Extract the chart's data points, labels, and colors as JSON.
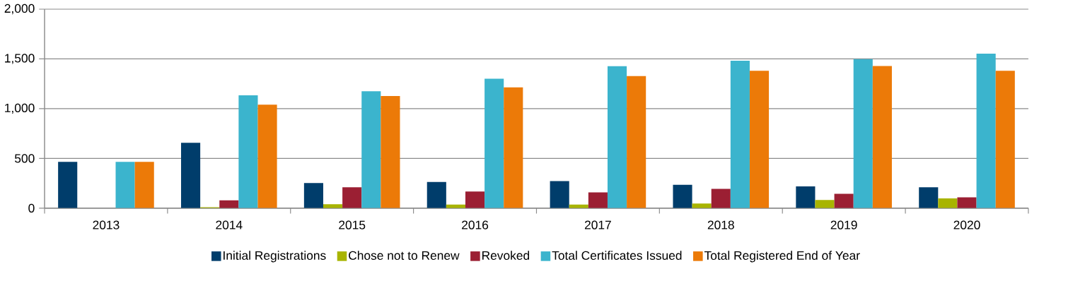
{
  "chart_data": {
    "type": "bar",
    "categories": [
      "2013",
      "2014",
      "2015",
      "2016",
      "2017",
      "2018",
      "2019",
      "2020"
    ],
    "series": [
      {
        "name": "Initial Registrations",
        "color": "#003d6b",
        "values": [
          465,
          657,
          253,
          263,
          272,
          235,
          219,
          210
        ]
      },
      {
        "name": "Chose not to Renew",
        "color": "#a8b400",
        "values": [
          0,
          10,
          39,
          37,
          37,
          46,
          83,
          99
        ]
      },
      {
        "name": "Revoked",
        "color": "#9b1f33",
        "values": [
          0,
          78,
          210,
          168,
          159,
          194,
          145,
          108
        ]
      },
      {
        "name": "Total Certificates Issued",
        "color": "#3bb4cd",
        "values": [
          465,
          1134,
          1175,
          1300,
          1426,
          1482,
          1498,
          1553
        ]
      },
      {
        "name": "Total Registered End of Year",
        "color": "#ec7a08",
        "values": [
          465,
          1041,
          1127,
          1214,
          1327,
          1380,
          1429,
          1380
        ]
      }
    ],
    "ylim": [
      0,
      2000
    ],
    "yticks": [
      0,
      500,
      {
        "value": 1000,
        "label": "1,000"
      },
      {
        "value": 1500,
        "label": "1,500"
      },
      {
        "value": 2000,
        "label": "2,000"
      }
    ],
    "grid": "y",
    "legend": "bottom"
  }
}
